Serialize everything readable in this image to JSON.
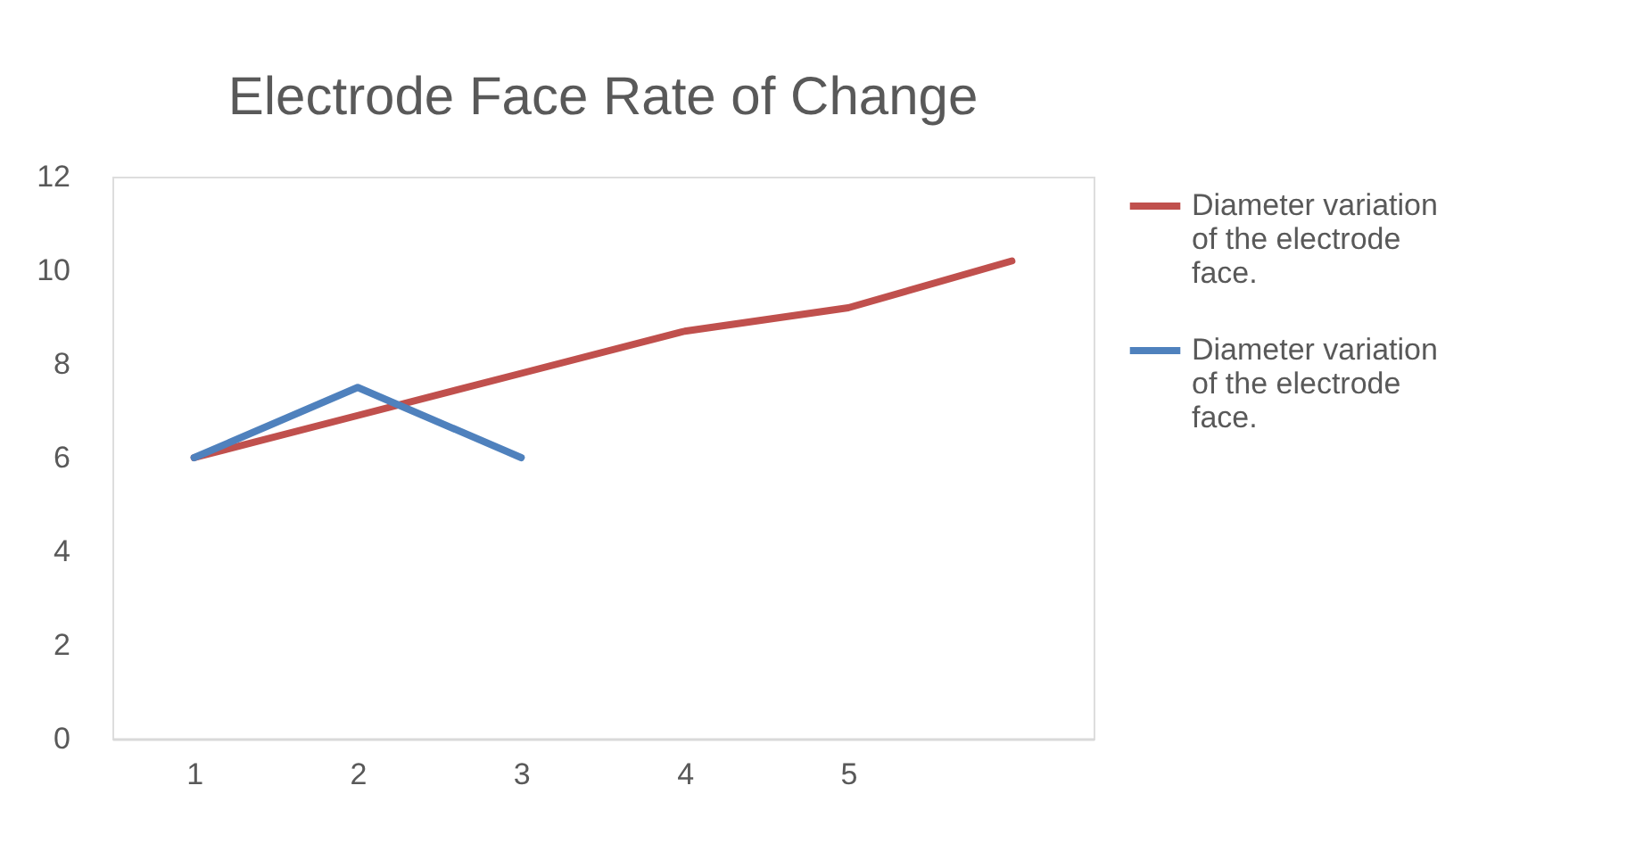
{
  "chart_data": {
    "type": "line",
    "title": "Electrode Face Rate of Change",
    "categories": [
      "1",
      "2",
      "3",
      "4",
      "5",
      null
    ],
    "series": [
      {
        "name": "Diameter variation of the electrode face.",
        "color": "#c0504d",
        "values": [
          6,
          6.9,
          7.8,
          8.7,
          9.2,
          10.2
        ]
      },
      {
        "name": "Diameter variation of the electrode face.",
        "color": "#4f81bd",
        "values": [
          6,
          7.5,
          6,
          null,
          null,
          null
        ]
      }
    ],
    "ylim": [
      0,
      12
    ],
    "yticks": [
      0,
      2,
      4,
      6,
      8,
      10,
      12
    ],
    "grid": false,
    "legend": "right",
    "marker": "none",
    "line_style": "solid"
  }
}
